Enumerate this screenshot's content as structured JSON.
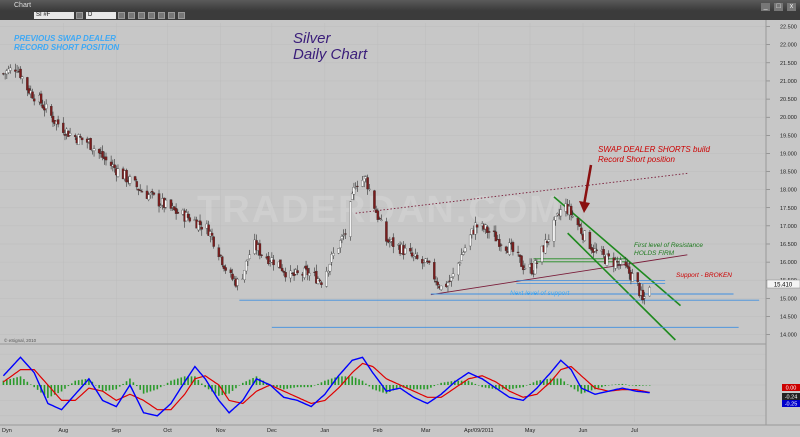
{
  "window": {
    "title": "Chart",
    "symbol": "SI #F",
    "interval": "D",
    "close_glyph": "x",
    "min_glyph": "_",
    "max_glyph": "□"
  },
  "annotations": {
    "prev_swap_line1": "PREVIOUS SWAP DEALER",
    "prev_swap_line2": "RECORD SHORT POSITION",
    "title_line1": "Silver",
    "title_line2": "Daily Chart",
    "swap_build_line1": "SWAP DEALER SHORTS build",
    "swap_build_line2": "Record Short position",
    "first_resistance_line1": "First level of Resistance",
    "first_resistance_line2": "HOLDS FIRM",
    "support_broken": "Support - BROKEN",
    "next_support": "Next level of support",
    "watermark": "TRADERDAN.COM",
    "copyright": "© eSignal, 2010",
    "last_price": "15.410",
    "osc_tag_upper": "0.00",
    "osc_tag_mid": "-0.24",
    "osc_tag_lower": "-0.25",
    "bottom_left_tag": "Dyn"
  },
  "colors": {
    "background": "#c7c7c7",
    "up_candle": "#f4f4f4",
    "down_candle": "#7a1d1d",
    "annotation_blue": "#3fa9f5",
    "annotation_red": "#cc0000",
    "annotation_green": "#1e7a1e",
    "title_purple": "#3a1d7a",
    "channel_green": "#1f8a1f",
    "trend_maroon": "#7a1d3a",
    "support_blue": "#3f8fe0",
    "osc_blue": "#0000ff",
    "osc_red": "#e00000",
    "osc_hist_green": "#2a9a2a"
  },
  "chart_data": {
    "type": "candlestick",
    "title": "Silver Daily Chart",
    "y_axis_ticks": [
      "22.500",
      "22.000",
      "21.500",
      "21.000",
      "20.500",
      "20.000",
      "19.500",
      "19.000",
      "18.500",
      "18.000",
      "17.500",
      "17.000",
      "16.500",
      "16.000",
      "15.500",
      "15.000",
      "14.500",
      "14.000"
    ],
    "ylim": [
      13.85,
      22.6
    ],
    "x_axis_labels": [
      "Aug",
      "Sep",
      "Oct",
      "Nov",
      "Dec",
      "Jan",
      "Feb",
      "Mar",
      "Apr/09/2011",
      "May",
      "Jun",
      "Jul"
    ],
    "x_label_days": [
      35,
      66,
      96,
      127,
      157,
      188,
      219,
      247,
      278,
      308,
      339,
      369
    ],
    "price_series_anchors": [
      {
        "day": 0,
        "price": 21.2
      },
      {
        "day": 8,
        "price": 21.4
      },
      {
        "day": 14,
        "price": 20.8
      },
      {
        "day": 22,
        "price": 20.4
      },
      {
        "day": 30,
        "price": 19.9
      },
      {
        "day": 40,
        "price": 19.5
      },
      {
        "day": 50,
        "price": 19.3
      },
      {
        "day": 60,
        "price": 18.8
      },
      {
        "day": 70,
        "price": 18.4
      },
      {
        "day": 80,
        "price": 18.0
      },
      {
        "day": 90,
        "price": 17.7
      },
      {
        "day": 100,
        "price": 17.4
      },
      {
        "day": 110,
        "price": 17.2
      },
      {
        "day": 120,
        "price": 16.9
      },
      {
        "day": 126,
        "price": 16.3
      },
      {
        "day": 132,
        "price": 15.6
      },
      {
        "day": 138,
        "price": 15.4
      },
      {
        "day": 146,
        "price": 16.5
      },
      {
        "day": 152,
        "price": 16.2
      },
      {
        "day": 160,
        "price": 16.0
      },
      {
        "day": 168,
        "price": 15.6
      },
      {
        "day": 178,
        "price": 15.7
      },
      {
        "day": 186,
        "price": 15.5
      },
      {
        "day": 194,
        "price": 16.3
      },
      {
        "day": 200,
        "price": 16.8
      },
      {
        "day": 206,
        "price": 18.2
      },
      {
        "day": 212,
        "price": 18.3
      },
      {
        "day": 218,
        "price": 17.4
      },
      {
        "day": 224,
        "price": 16.6
      },
      {
        "day": 232,
        "price": 16.4
      },
      {
        "day": 240,
        "price": 16.1
      },
      {
        "day": 248,
        "price": 15.9
      },
      {
        "day": 256,
        "price": 15.3
      },
      {
        "day": 262,
        "price": 15.5
      },
      {
        "day": 268,
        "price": 16.2
      },
      {
        "day": 276,
        "price": 17.0
      },
      {
        "day": 282,
        "price": 16.9
      },
      {
        "day": 290,
        "price": 16.6
      },
      {
        "day": 296,
        "price": 16.4
      },
      {
        "day": 304,
        "price": 15.9
      },
      {
        "day": 310,
        "price": 15.8
      },
      {
        "day": 316,
        "price": 16.4
      },
      {
        "day": 322,
        "price": 17.0
      },
      {
        "day": 328,
        "price": 17.6
      },
      {
        "day": 334,
        "price": 17.2
      },
      {
        "day": 340,
        "price": 16.7
      },
      {
        "day": 346,
        "price": 16.3
      },
      {
        "day": 352,
        "price": 16.1
      },
      {
        "day": 358,
        "price": 16.0
      },
      {
        "day": 364,
        "price": 15.8
      },
      {
        "day": 370,
        "price": 15.5
      },
      {
        "day": 374,
        "price": 14.9
      },
      {
        "day": 378,
        "price": 15.41
      }
    ],
    "trendlines": [
      {
        "name": "upper-channel",
        "style": "dotted",
        "color": "#7a1d3a",
        "from": {
          "day": 206,
          "price": 17.35
        },
        "to": {
          "day": 400,
          "price": 18.45
        }
      },
      {
        "name": "lower-channel",
        "style": "solid",
        "color": "#7a1d3a",
        "from": {
          "day": 250,
          "price": 15.1
        },
        "to": {
          "day": 400,
          "price": 16.2
        }
      },
      {
        "name": "green-channel-top",
        "style": "solid",
        "color": "#1f8a1f",
        "from": {
          "day": 322,
          "price": 17.8
        },
        "to": {
          "day": 396,
          "price": 14.8
        }
      },
      {
        "name": "green-channel-bottom",
        "style": "solid",
        "color": "#1f8a1f",
        "from": {
          "day": 330,
          "price": 16.8
        },
        "to": {
          "day": 393,
          "price": 13.85
        }
      },
      {
        "name": "resistance-band",
        "style": "double",
        "color": "#1f8a1f",
        "from": {
          "day": 310,
          "price": 16.05
        },
        "to": {
          "day": 365,
          "price": 16.05
        }
      },
      {
        "name": "broken-support",
        "style": "double",
        "color": "#3f8fe0",
        "from": {
          "day": 300,
          "price": 15.45
        },
        "to": {
          "day": 387,
          "price": 15.45
        }
      },
      {
        "name": "support-1",
        "style": "solid",
        "color": "#3f8fe0",
        "from": {
          "day": 250,
          "price": 15.12
        },
        "to": {
          "day": 427,
          "price": 15.12
        }
      },
      {
        "name": "support-2",
        "style": "solid",
        "color": "#3f8fe0",
        "from": {
          "day": 138,
          "price": 14.95
        },
        "to": {
          "day": 442,
          "price": 14.95
        }
      },
      {
        "name": "support-3",
        "style": "solid",
        "color": "#3f8fe0",
        "from": {
          "day": 157,
          "price": 14.2
        },
        "to": {
          "day": 430,
          "price": 14.2
        }
      }
    ],
    "oscillator": {
      "type": "macd",
      "ylim": [
        -1.2,
        1.2
      ],
      "fast_anchors": [
        {
          "day": 0,
          "v": 0.3
        },
        {
          "day": 10,
          "v": 0.9
        },
        {
          "day": 18,
          "v": 0.4
        },
        {
          "day": 26,
          "v": -0.6
        },
        {
          "day": 34,
          "v": -0.8
        },
        {
          "day": 42,
          "v": -0.3
        },
        {
          "day": 50,
          "v": 0.2
        },
        {
          "day": 58,
          "v": -0.5
        },
        {
          "day": 66,
          "v": -0.7
        },
        {
          "day": 74,
          "v": 0.0
        },
        {
          "day": 82,
          "v": -0.9
        },
        {
          "day": 90,
          "v": -1.0
        },
        {
          "day": 98,
          "v": -0.6
        },
        {
          "day": 106,
          "v": 0.1
        },
        {
          "day": 112,
          "v": 0.6
        },
        {
          "day": 118,
          "v": 0.2
        },
        {
          "day": 126,
          "v": -0.5
        },
        {
          "day": 132,
          "v": -0.9
        },
        {
          "day": 140,
          "v": -0.5
        },
        {
          "day": 148,
          "v": 0.2
        },
        {
          "day": 156,
          "v": 0.0
        },
        {
          "day": 164,
          "v": -0.4
        },
        {
          "day": 172,
          "v": -0.5
        },
        {
          "day": 180,
          "v": -0.7
        },
        {
          "day": 188,
          "v": -0.3
        },
        {
          "day": 196,
          "v": 0.3
        },
        {
          "day": 204,
          "v": 0.8
        },
        {
          "day": 210,
          "v": 0.9
        },
        {
          "day": 216,
          "v": 0.4
        },
        {
          "day": 224,
          "v": -0.2
        },
        {
          "day": 232,
          "v": -0.1
        },
        {
          "day": 240,
          "v": -0.4
        },
        {
          "day": 248,
          "v": -0.6
        },
        {
          "day": 256,
          "v": -0.3
        },
        {
          "day": 264,
          "v": 0.1
        },
        {
          "day": 272,
          "v": 0.4
        },
        {
          "day": 280,
          "v": 0.2
        },
        {
          "day": 288,
          "v": -0.1
        },
        {
          "day": 296,
          "v": -0.4
        },
        {
          "day": 304,
          "v": -0.5
        },
        {
          "day": 312,
          "v": -0.1
        },
        {
          "day": 320,
          "v": 0.4
        },
        {
          "day": 326,
          "v": 0.8
        },
        {
          "day": 332,
          "v": 0.5
        },
        {
          "day": 338,
          "v": -0.1
        },
        {
          "day": 346,
          "v": -0.3
        },
        {
          "day": 354,
          "v": -0.2
        },
        {
          "day": 362,
          "v": -0.1
        },
        {
          "day": 370,
          "v": -0.2
        },
        {
          "day": 378,
          "v": -0.25
        }
      ],
      "slow_anchors": [
        {
          "day": 0,
          "v": 0.1
        },
        {
          "day": 10,
          "v": 0.5
        },
        {
          "day": 18,
          "v": 0.5
        },
        {
          "day": 26,
          "v": 0.0
        },
        {
          "day": 34,
          "v": -0.5
        },
        {
          "day": 42,
          "v": -0.5
        },
        {
          "day": 50,
          "v": -0.1
        },
        {
          "day": 58,
          "v": -0.2
        },
        {
          "day": 66,
          "v": -0.5
        },
        {
          "day": 74,
          "v": -0.3
        },
        {
          "day": 82,
          "v": -0.5
        },
        {
          "day": 90,
          "v": -0.8
        },
        {
          "day": 98,
          "v": -0.8
        },
        {
          "day": 106,
          "v": -0.3
        },
        {
          "day": 112,
          "v": 0.2
        },
        {
          "day": 118,
          "v": 0.3
        },
        {
          "day": 126,
          "v": 0.0
        },
        {
          "day": 132,
          "v": -0.5
        },
        {
          "day": 140,
          "v": -0.6
        },
        {
          "day": 148,
          "v": -0.2
        },
        {
          "day": 156,
          "v": 0.0
        },
        {
          "day": 164,
          "v": -0.2
        },
        {
          "day": 172,
          "v": -0.4
        },
        {
          "day": 180,
          "v": -0.6
        },
        {
          "day": 188,
          "v": -0.5
        },
        {
          "day": 196,
          "v": -0.1
        },
        {
          "day": 204,
          "v": 0.4
        },
        {
          "day": 210,
          "v": 0.7
        },
        {
          "day": 216,
          "v": 0.6
        },
        {
          "day": 224,
          "v": 0.2
        },
        {
          "day": 232,
          "v": 0.0
        },
        {
          "day": 240,
          "v": -0.2
        },
        {
          "day": 248,
          "v": -0.4
        },
        {
          "day": 256,
          "v": -0.4
        },
        {
          "day": 264,
          "v": -0.1
        },
        {
          "day": 272,
          "v": 0.2
        },
        {
          "day": 280,
          "v": 0.3
        },
        {
          "day": 288,
          "v": 0.1
        },
        {
          "day": 296,
          "v": -0.2
        },
        {
          "day": 304,
          "v": -0.4
        },
        {
          "day": 312,
          "v": -0.3
        },
        {
          "day": 320,
          "v": 0.1
        },
        {
          "day": 326,
          "v": 0.5
        },
        {
          "day": 332,
          "v": 0.6
        },
        {
          "day": 338,
          "v": 0.3
        },
        {
          "day": 346,
          "v": -0.1
        },
        {
          "day": 354,
          "v": -0.2
        },
        {
          "day": 362,
          "v": -0.15
        },
        {
          "day": 370,
          "v": -0.15
        },
        {
          "day": 378,
          "v": -0.24
        }
      ]
    }
  }
}
